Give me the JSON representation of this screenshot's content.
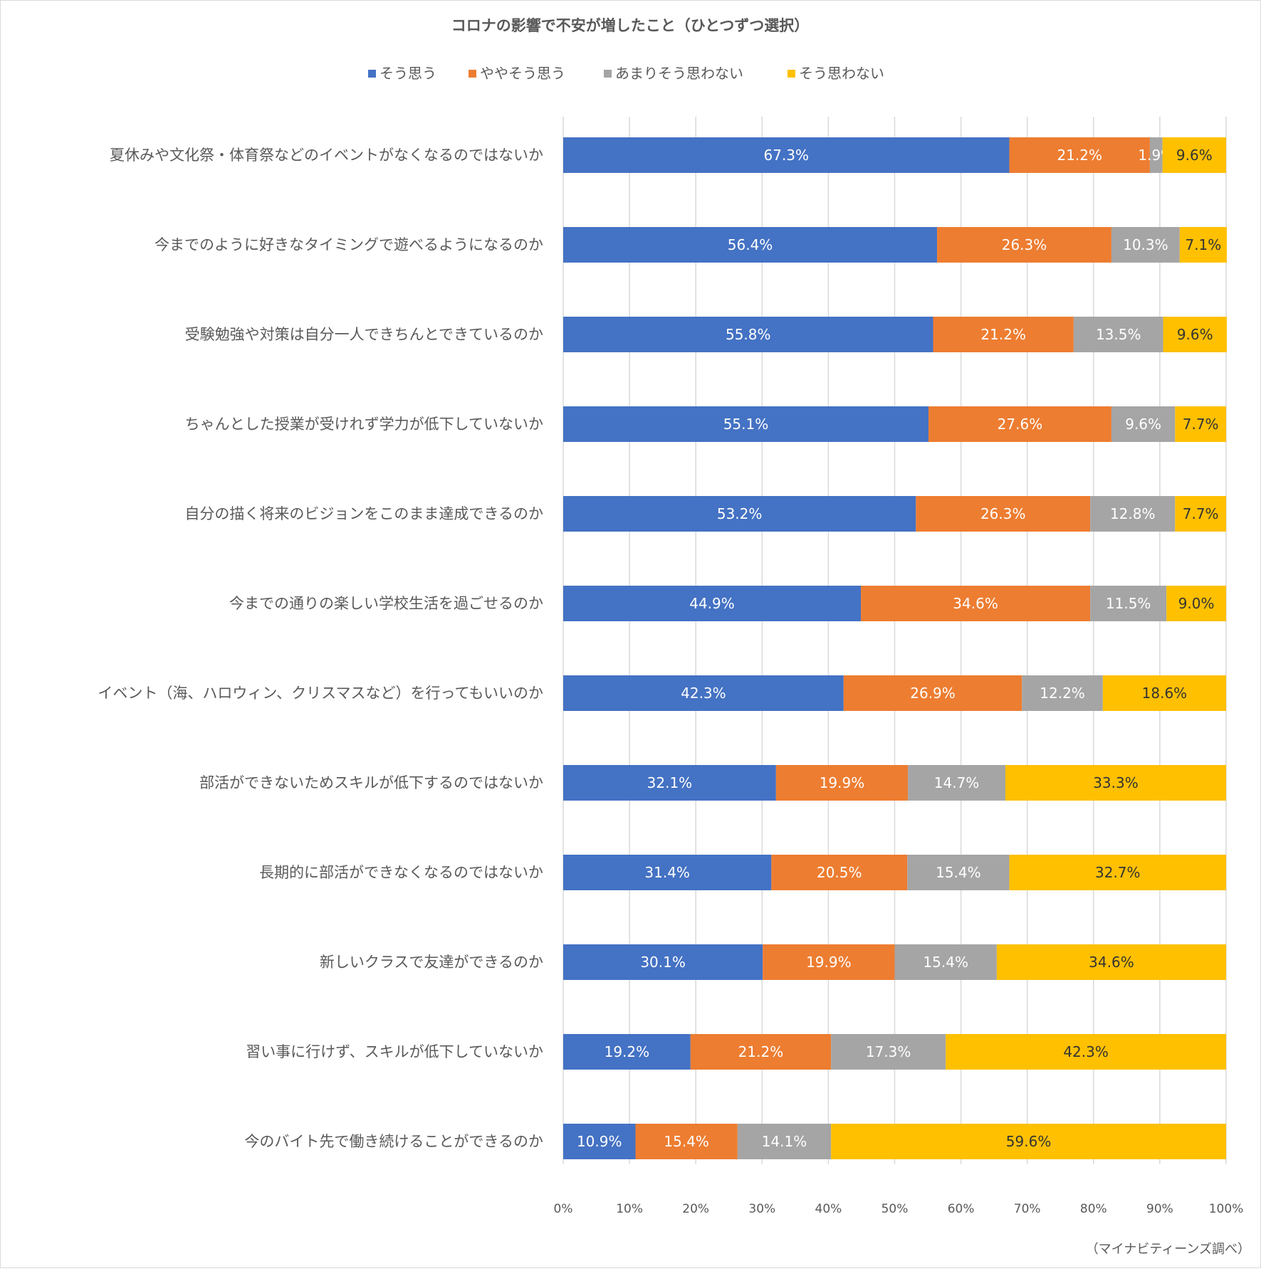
{
  "chart_data": {
    "type": "bar",
    "orientation": "horizontal",
    "stacked": "percent",
    "title": "コロナの影響で不安が増したこと（ひとつずつ選択）",
    "source": "（マイナビティーンズ調べ）",
    "legend_position": "top",
    "grid": true,
    "xlim": [
      0,
      100
    ],
    "x_ticks": [
      "0%",
      "10%",
      "20%",
      "30%",
      "40%",
      "50%",
      "60%",
      "70%",
      "80%",
      "90%",
      "100%"
    ],
    "categories": [
      "夏休みや文化祭・体育祭などのイベントがなくなるのではないか",
      "今までのように好きなタイミングで遊べるようになるのか",
      "受験勉強や対策は自分一人できちんとできているのか",
      "ちゃんとした授業が受けれず学力が低下していないか",
      "自分の描く将来のビジョンをこのまま達成できるのか",
      "今までの通りの楽しい学校生活を過ごせるのか",
      "イベント（海、ハロウィン、クリスマスなど）を行ってもいいのか",
      "部活ができないためスキルが低下するのではないか",
      "長期的に部活ができなくなるのではないか",
      "新しいクラスで友達ができるのか",
      "習い事に行けず、スキルが低下していないか",
      "今のバイト先で働き続けることができるのか"
    ],
    "series": [
      {
        "name": "そう思う",
        "color": "#4472c4",
        "label_color": "#ffffff",
        "values": [
          67.3,
          56.4,
          55.8,
          55.1,
          53.2,
          44.9,
          42.3,
          32.1,
          31.4,
          30.1,
          19.2,
          10.9
        ]
      },
      {
        "name": "ややそう思う",
        "color": "#ed7d31",
        "label_color": "#ffffff",
        "values": [
          21.2,
          26.3,
          21.2,
          27.6,
          26.3,
          34.6,
          26.9,
          19.9,
          20.5,
          19.9,
          21.2,
          15.4
        ]
      },
      {
        "name": "あまりそう思わない",
        "color": "#a5a5a5",
        "label_color": "#ffffff",
        "values": [
          1.9,
          10.3,
          13.5,
          9.6,
          12.8,
          11.5,
          12.2,
          14.7,
          15.4,
          15.4,
          17.3,
          14.1
        ]
      },
      {
        "name": "そう思わない",
        "color": "#ffc000",
        "label_color": "#333333",
        "values": [
          9.6,
          7.1,
          9.6,
          7.7,
          7.7,
          9.0,
          18.6,
          33.3,
          32.7,
          34.6,
          42.3,
          59.6
        ]
      }
    ]
  }
}
